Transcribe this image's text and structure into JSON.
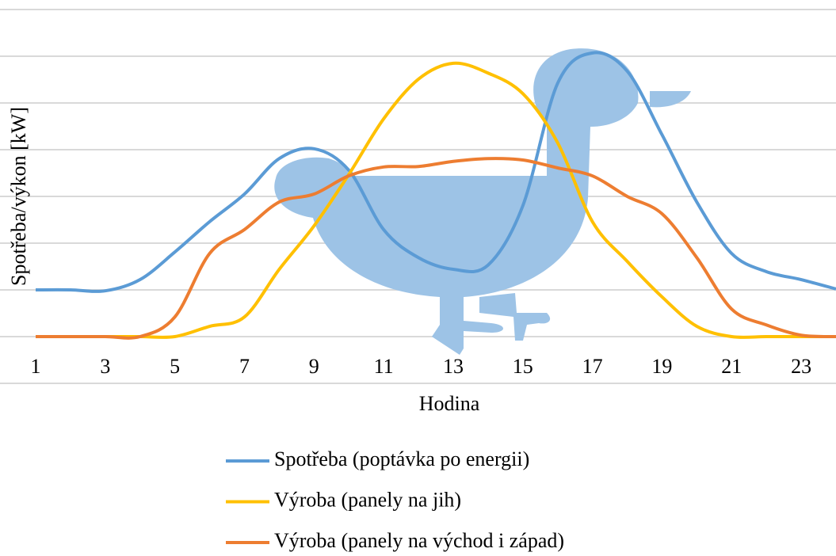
{
  "chart_data": {
    "type": "line",
    "x_label": "Hodina",
    "y_label": "Spotřeba/výkon [kW]",
    "x": [
      1,
      2,
      3,
      4,
      5,
      6,
      7,
      8,
      9,
      10,
      11,
      12,
      13,
      14,
      15,
      16,
      17,
      18,
      19,
      20,
      21,
      22,
      23,
      24
    ],
    "xlim": [
      1,
      24
    ],
    "xticks": [
      1,
      3,
      5,
      7,
      9,
      11,
      13,
      15,
      17,
      19,
      21,
      23
    ],
    "ylim": [
      -1,
      7
    ],
    "yticks": [
      -1,
      0,
      1,
      2,
      3,
      4,
      5,
      6,
      7
    ],
    "grid": true,
    "legend": "bottom",
    "series": [
      {
        "name": "Spotřeba (poptávka po energii)",
        "color": "#5b9bd5",
        "values": [
          1.0,
          1.0,
          0.98,
          1.22,
          1.81,
          2.46,
          3.05,
          3.81,
          4.02,
          3.56,
          2.29,
          1.69,
          1.44,
          1.53,
          2.8,
          5.42,
          6.07,
          5.68,
          4.32,
          2.88,
          1.78,
          1.39,
          1.22,
          1.02
        ]
      },
      {
        "name": "Výroba (panely na jih)",
        "color": "#ffc000",
        "values": [
          0,
          0,
          0,
          0,
          0,
          0.22,
          0.42,
          1.44,
          2.37,
          3.47,
          4.66,
          5.51,
          5.85,
          5.64,
          5.2,
          4.15,
          2.46,
          1.61,
          0.85,
          0.22,
          0,
          0,
          0,
          0
        ]
      },
      {
        "name": "Výroba (panely na východ i západ)",
        "color": "#ed7d31",
        "values": [
          0,
          0,
          0,
          0,
          0.42,
          1.78,
          2.29,
          2.88,
          3.05,
          3.44,
          3.63,
          3.64,
          3.75,
          3.81,
          3.78,
          3.61,
          3.44,
          3.0,
          2.63,
          1.69,
          0.59,
          0.25,
          0.03,
          0
        ]
      }
    ]
  }
}
